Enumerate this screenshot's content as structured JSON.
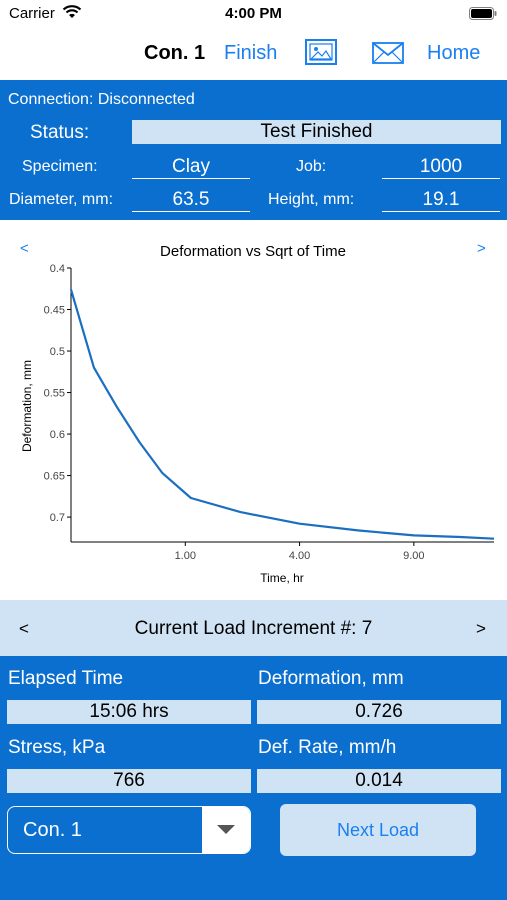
{
  "status_bar": {
    "carrier": "Carrier",
    "time": "4:00 PM"
  },
  "nav": {
    "title": "Con. 1",
    "finish": "Finish",
    "home": "Home",
    "icons": [
      "image-icon",
      "mail-icon"
    ],
    "accent": "#1a7ff0"
  },
  "info": {
    "connection": "Connection: Disconnected",
    "status_label": "Status:",
    "status_value": "Test Finished",
    "specimen_label": "Specimen:",
    "specimen_value": "Clay",
    "job_label": "Job:",
    "job_value": "1000",
    "diameter_label": "Diameter, mm:",
    "diameter_value": "63.5",
    "height_label": "Height, mm:",
    "height_value": "19.1"
  },
  "chart_nav": {
    "prev": "<",
    "next": ">"
  },
  "chart_data": {
    "type": "line",
    "title": "Deformation vs Sqrt of Time",
    "xlabel": "Time, hr",
    "ylabel": "Deformation, mm",
    "x_scale": "sqrt",
    "xlim": [
      0,
      13.7
    ],
    "ylim": [
      0.4,
      0.73
    ],
    "y_inverted": true,
    "x_ticks": [
      1,
      4,
      9
    ],
    "x_tick_labels": [
      "1.00",
      "4.00",
      "9.00"
    ],
    "y_ticks": [
      0.4,
      0.45,
      0.5,
      0.55,
      0.6,
      0.65,
      0.7
    ],
    "y_tick_labels": [
      "0.4",
      "0.45",
      "0.5",
      "0.55",
      "0.6",
      "0.65",
      "0.7"
    ],
    "line_color": "#1a6fc0",
    "series": [
      {
        "x": [
          0,
          0.04,
          0.16,
          0.36,
          0.64,
          1.1,
          2.2,
          4.0,
          6.3,
          9.0,
          11.6,
          13.7
        ],
        "y": [
          0.426,
          0.52,
          0.567,
          0.61,
          0.647,
          0.677,
          0.694,
          0.708,
          0.716,
          0.722,
          0.724,
          0.726
        ]
      }
    ]
  },
  "increment": {
    "prev": "<",
    "next": ">",
    "title": "Current Load Increment #: 7"
  },
  "bottom": {
    "elapsed_label": "Elapsed Time",
    "elapsed_value": "15:06 hrs",
    "deformation_label": "Deformation, mm",
    "deformation_value": "0.726",
    "stress_label": "Stress, kPa",
    "stress_value": "766",
    "rate_label": "Def. Rate, mm/h",
    "rate_value": "0.014",
    "selected_connection": "Con. 1",
    "next_load": "Next Load"
  },
  "colors": {
    "panel_blue": "#0a6fcf",
    "light_blue": "#cfe3f5"
  }
}
